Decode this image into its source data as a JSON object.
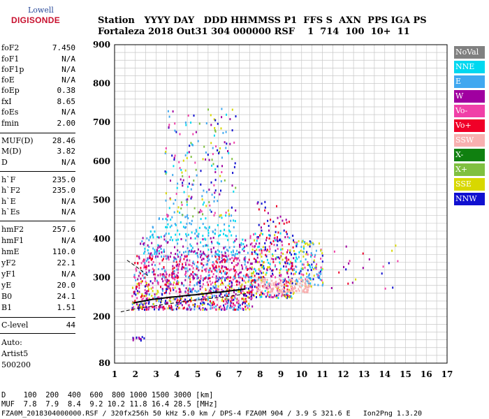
{
  "logo": {
    "line1": "Lowell",
    "line2": "DIGISONDE"
  },
  "header": {
    "row1": "Station   YYYY DAY   DDD HHMMSS P1  FFS S  AXN  PPS IGA PS",
    "row2": "Fortaleza 2018 Out31 304 000000 RSF    1  714  100  10+  11"
  },
  "params": [
    {
      "name": "foF2",
      "value": "7.450"
    },
    {
      "name": "foF1",
      "value": "N/A"
    },
    {
      "name": "foF1p",
      "value": "N/A"
    },
    {
      "name": "foE",
      "value": "N/A"
    },
    {
      "name": "foEp",
      "value": "0.38"
    },
    {
      "name": "fxI",
      "value": "8.65"
    },
    {
      "name": "foEs",
      "value": "N/A"
    },
    {
      "name": "fmin",
      "value": "2.00"
    },
    {
      "name": "MUF(D)",
      "value": "28.46"
    },
    {
      "name": "M(D)",
      "value": "3.82"
    },
    {
      "name": "D",
      "value": "N/A"
    },
    {
      "name": "h`F",
      "value": "235.0"
    },
    {
      "name": "h`F2",
      "value": "235.0"
    },
    {
      "name": "h`E",
      "value": "N/A"
    },
    {
      "name": "h`Es",
      "value": "N/A"
    },
    {
      "name": "hmF2",
      "value": "257.6"
    },
    {
      "name": "hmF1",
      "value": "N/A"
    },
    {
      "name": "hmE",
      "value": "110.0"
    },
    {
      "name": "yF2",
      "value": "22.1"
    },
    {
      "name": "yF1",
      "value": "N/A"
    },
    {
      "name": "yE",
      "value": "20.0"
    },
    {
      "name": "B0",
      "value": "24.1"
    },
    {
      "name": "B1",
      "value": "1.51"
    },
    {
      "name": "C-level",
      "value": "44"
    }
  ],
  "auto": {
    "line1": "Auto:",
    "line2": "Artist5",
    "line3": "500200"
  },
  "legend": [
    {
      "label": "NoVal",
      "color": "#808080"
    },
    {
      "label": "NNE",
      "color": "#00d8f0"
    },
    {
      "label": "E",
      "color": "#40a8f0"
    },
    {
      "label": "W",
      "color": "#a000a0"
    },
    {
      "label": "Vo-",
      "color": "#f040a8"
    },
    {
      "label": "Vo+",
      "color": "#f00028"
    },
    {
      "label": "SSW",
      "color": "#f8b0b0"
    },
    {
      "label": "X-",
      "color": "#108010"
    },
    {
      "label": "X+",
      "color": "#80c040"
    },
    {
      "label": "SSE",
      "color": "#d8d800"
    },
    {
      "label": "NNW",
      "color": "#1010d0"
    }
  ],
  "footer": {
    "row1": "D    100  200  400  600  800 1000 1500 3000 [km]",
    "row2": "MUF  7.8  7.9  8.4  9.2 10.2 11.8 16.4 28.5 [MHz]",
    "row3": "FZA0M_2018304000000.RSF / 320fx256h 50 kHz 5.0 km / DPS-4 FZA0M 904 / 3.9 S 321.6 E   Ion2Png 1.3.20"
  },
  "chart_data": {
    "type": "scatter",
    "xlim": [
      1,
      17
    ],
    "ylim": [
      80,
      900
    ],
    "x_ticks": [
      1,
      2,
      3,
      4,
      5,
      6,
      7,
      8,
      9,
      10,
      11,
      12,
      13,
      14,
      15,
      16,
      17
    ],
    "y_ticks": [
      80,
      200,
      300,
      400,
      500,
      600,
      700,
      800,
      900
    ],
    "grid": true,
    "legend_position": "right",
    "trace": {
      "x": [
        1.9,
        2.2,
        2.5,
        2.8,
        3.1,
        3.4,
        3.7,
        4.0,
        4.3,
        4.6,
        4.9,
        5.2,
        5.5,
        5.8,
        6.1,
        6.4,
        6.7,
        7.0,
        7.3
      ],
      "y": [
        235,
        238,
        241,
        244,
        246,
        248,
        250,
        251,
        253,
        255,
        256,
        258,
        260,
        262,
        263,
        265,
        267,
        269,
        271
      ]
    },
    "dashed_profile": {
      "x": [
        1.3,
        2.0,
        2.5,
        3.0,
        3.5,
        4.0,
        4.5,
        5.0,
        5.5,
        6.0,
        6.5,
        7.0,
        7.4
      ],
      "y": [
        212,
        220,
        224,
        228,
        232,
        236,
        240,
        243,
        246,
        249,
        252,
        256,
        260
      ]
    },
    "dashed_topside": {
      "x": [
        1.6,
        2.0,
        2.3,
        2.6
      ],
      "y": [
        345,
        330,
        318,
        305
      ]
    },
    "clusters": [
      {
        "x": [
          1.8,
          7.6
        ],
        "y": [
          220,
          300
        ],
        "colors": [
          "#f00028",
          "#f040a8",
          "#d8d800",
          "#40a8f0",
          "#a000a0",
          "#1010d0"
        ],
        "n": 620
      },
      {
        "x": [
          1.9,
          7.5
        ],
        "y": [
          300,
          360
        ],
        "colors": [
          "#a000a0",
          "#f040a8",
          "#40a8f0",
          "#f00028"
        ],
        "n": 380
      },
      {
        "x": [
          2.2,
          7.4
        ],
        "y": [
          360,
          410
        ],
        "colors": [
          "#40a8f0",
          "#00d8f0",
          "#a000a0"
        ],
        "n": 170
      },
      {
        "x": [
          2.6,
          6.8
        ],
        "y": [
          410,
          460
        ],
        "colors": [
          "#40a8f0",
          "#00d8f0"
        ],
        "n": 80
      },
      {
        "x": [
          3.4,
          6.8
        ],
        "y": [
          460,
          740
        ],
        "colors": [
          "#a000a0",
          "#40a8f0",
          "#d8d800",
          "#f040a8",
          "#00d8f0",
          "#1010d0",
          "#80c040"
        ],
        "n": 200
      },
      {
        "x": [
          7.5,
          9.6
        ],
        "y": [
          250,
          420
        ],
        "colors": [
          "#f00028",
          "#a000a0",
          "#00d8f0",
          "#f040a8",
          "#1010d0",
          "#d8d800"
        ],
        "n": 360
      },
      {
        "x": [
          9.6,
          11.0
        ],
        "y": [
          280,
          400
        ],
        "colors": [
          "#00d8f0",
          "#40a8f0",
          "#f040a8",
          "#1010d0",
          "#d8d800"
        ],
        "n": 150
      },
      {
        "x": [
          7.8,
          10.4
        ],
        "y": [
          265,
          300
        ],
        "colors": [
          "#f8b0b0"
        ],
        "n": 130
      },
      {
        "x": [
          7.8,
          9.4
        ],
        "y": [
          420,
          505
        ],
        "colors": [
          "#1010d0",
          "#a000a0",
          "#f00028"
        ],
        "n": 30
      },
      {
        "x": [
          11.2,
          14.8
        ],
        "y": [
          270,
          390
        ],
        "colors": [
          "#f00028",
          "#1010d0",
          "#d8d800",
          "#f040a8",
          "#a000a0"
        ],
        "n": 22
      },
      {
        "x": [
          1.8,
          2.4
        ],
        "y": [
          140,
          150
        ],
        "colors": [
          "#a000a0",
          "#1010d0"
        ],
        "n": 12
      }
    ]
  }
}
